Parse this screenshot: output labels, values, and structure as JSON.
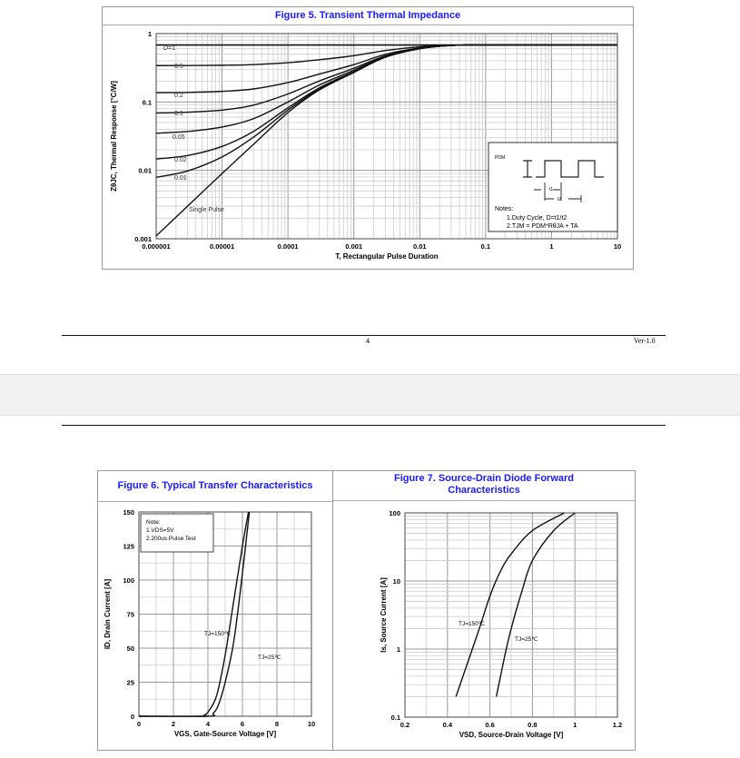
{
  "page_top": {
    "page_number": "4",
    "version": "Ver-1.0"
  },
  "fig5": {
    "title": "Figure 5. Transient Thermal Impedance",
    "ylabel": "ZθJC, Thermal Response [°C/W]",
    "xlabel": "T, Rectangular Pulse Duration",
    "notes_title": "Notes:",
    "note1": "1.Duty  Cycle, D=t1/t2",
    "note2": "2.TJM = PDM*RθJA + TA",
    "pdm": "PDM",
    "t1": "t1",
    "t2": "t2"
  },
  "fig6": {
    "title": "Figure 6. Typical Transfer Characteristics",
    "note_title": "Note:",
    "note1": "1.VDS=5V",
    "note2": "2.200us Pulse Test"
  },
  "fig7": {
    "title": "Figure 7. Source-Drain Diode Forward Characteristics"
  },
  "chart_data": [
    {
      "type": "line",
      "title": "Figure 5. Transient Thermal Impedance",
      "xlabel": "T, Rectangular Pulse Duration",
      "ylabel": "ZθJC, Thermal Response [°C/W]",
      "xscale": "log",
      "yscale": "log",
      "xlim": [
        1e-06,
        10
      ],
      "ylim": [
        0.001,
        1
      ],
      "grid": true,
      "xticks": [
        "0.000001",
        "0.00001",
        "0.0001",
        "0.001",
        "0.01",
        "0.1",
        "1",
        "10"
      ],
      "yticks": [
        "0.001",
        "0.01",
        "0.1",
        "1"
      ],
      "x": [
        1e-06,
        3e-06,
        1e-05,
        3e-05,
        0.0001,
        0.0003,
        0.001,
        0.003,
        0.01,
        0.03,
        0.1,
        10
      ],
      "series": [
        {
          "name": "D=1",
          "values": [
            0.68,
            0.68,
            0.68,
            0.68,
            0.68,
            0.68,
            0.68,
            0.68,
            0.68,
            0.68,
            0.68,
            0.68
          ]
        },
        {
          "name": "0.5",
          "values": [
            0.3406,
            0.3415,
            0.3445,
            0.352,
            0.375,
            0.415,
            0.475,
            0.565,
            0.64,
            0.675,
            0.68,
            0.68
          ]
        },
        {
          "name": "0.2",
          "values": [
            0.137,
            0.138,
            0.143,
            0.155,
            0.192,
            0.256,
            0.352,
            0.496,
            0.616,
            0.672,
            0.68,
            0.68
          ]
        },
        {
          "name": "0.1",
          "values": [
            0.069,
            0.071,
            0.076,
            0.09,
            0.131,
            0.203,
            0.311,
            0.473,
            0.608,
            0.671,
            0.68,
            0.68
          ]
        },
        {
          "name": "0.05",
          "values": [
            0.035,
            0.037,
            0.043,
            0.057,
            0.1,
            0.177,
            0.291,
            0.462,
            0.604,
            0.671,
            0.68,
            0.68
          ]
        },
        {
          "name": "0.02",
          "values": [
            0.0147,
            0.0165,
            0.0224,
            0.0371,
            0.0822,
            0.161,
            0.278,
            0.455,
            0.602,
            0.67,
            0.68,
            0.68
          ]
        },
        {
          "name": "0.01",
          "values": [
            0.0079,
            0.0098,
            0.0157,
            0.0306,
            0.076,
            0.155,
            0.274,
            0.452,
            0.601,
            0.67,
            0.68,
            0.68
          ]
        },
        {
          "name": "Single Pulse",
          "values": [
            0.0011,
            0.003,
            0.009,
            0.024,
            0.07,
            0.15,
            0.27,
            0.45,
            0.6,
            0.67,
            0.68,
            0.68
          ]
        }
      ]
    },
    {
      "type": "line",
      "title": "Figure 6. Typical Transfer Characteristics",
      "xlabel": "VGS, Gate-Source Voltage [V]",
      "ylabel": "ID, Drain Current [A]",
      "xlim": [
        0,
        10
      ],
      "ylim": [
        0,
        150
      ],
      "grid": true,
      "xticks": [
        "0",
        "2",
        "4",
        "6",
        "8",
        "10"
      ],
      "yticks": [
        "0",
        "25",
        "50",
        "75",
        "100",
        "125",
        "150"
      ],
      "series": [
        {
          "name": "TJ=150℃",
          "x": [
            0,
            3.5,
            3.8,
            4,
            4.5,
            5,
            5.5,
            6,
            6.35
          ],
          "values": [
            0,
            0,
            1,
            3,
            15,
            45,
            85,
            125,
            150
          ]
        },
        {
          "name": "TJ=25℃",
          "x": [
            0,
            4,
            4.3,
            4.6,
            5,
            5.5,
            6,
            6.4
          ],
          "values": [
            0,
            0,
            2,
            8,
            25,
            55,
            105,
            150
          ]
        }
      ]
    },
    {
      "type": "line",
      "title": "Figure 7. Source-Drain Diode Forward Characteristics",
      "xlabel": "VSD, Source-Drain Voltage [V]",
      "ylabel": "Is, Source Current [A]",
      "yscale": "log",
      "xlim": [
        0.2,
        1.2
      ],
      "ylim": [
        0.1,
        100
      ],
      "grid": true,
      "xticks": [
        "0.2",
        "0.4",
        "0.6",
        "0.8",
        "1",
        "1.2"
      ],
      "yticks": [
        "0.1",
        "1",
        "10",
        "100"
      ],
      "series": [
        {
          "name": "TJ=150℃",
          "x": [
            0.44,
            0.5,
            0.55,
            0.6,
            0.65,
            0.7,
            0.8,
            0.95
          ],
          "values": [
            0.2,
            0.7,
            2,
            6,
            14,
            25,
            55,
            100
          ]
        },
        {
          "name": "TJ=25℃",
          "x": [
            0.63,
            0.67,
            0.7,
            0.75,
            0.8,
            0.9,
            1.0
          ],
          "values": [
            0.2,
            0.8,
            2,
            7,
            20,
            55,
            100
          ]
        }
      ]
    }
  ]
}
